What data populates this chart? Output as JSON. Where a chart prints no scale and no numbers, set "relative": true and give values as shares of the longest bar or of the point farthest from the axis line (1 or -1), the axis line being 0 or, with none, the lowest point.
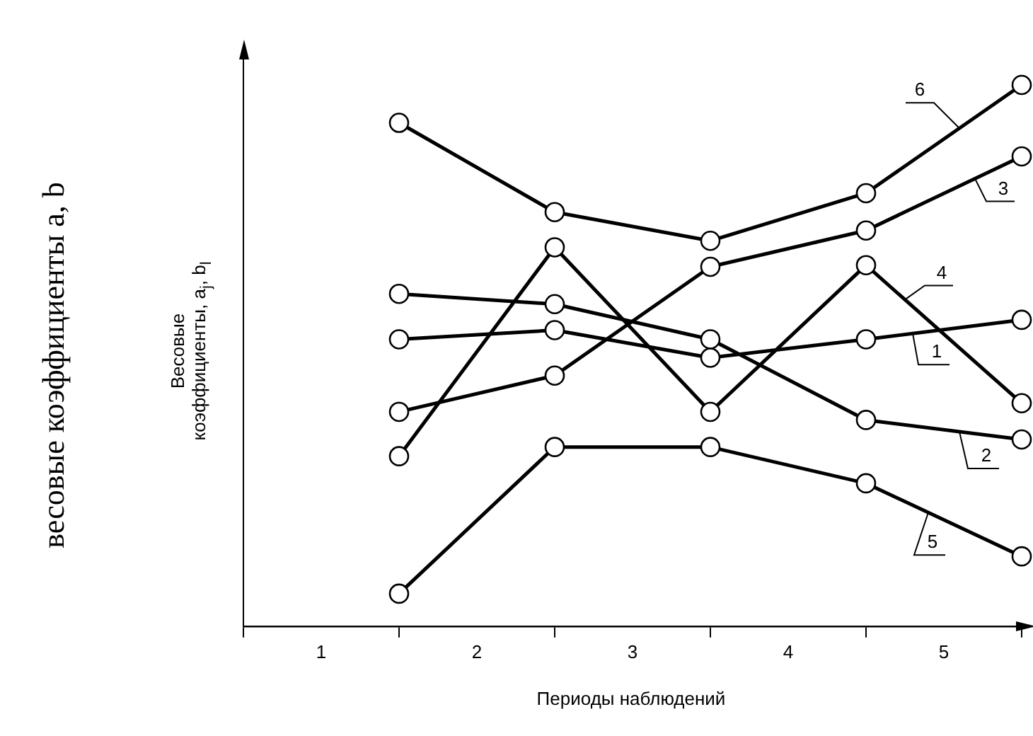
{
  "chart_data": {
    "type": "line",
    "relative": true,
    "xlabel": "Периоды наблюдений",
    "ylabel": "Весовые\nкоэффициенты, a$_{j}$, b$_{l}$",
    "annotations": [
      "весовые коэффициенты a, b"
    ],
    "x": [
      1,
      2,
      3,
      4,
      5
    ],
    "xlim": [
      0,
      5
    ],
    "xticks": [
      {
        "value": 0,
        "label": null
      },
      {
        "value": 0.5,
        "label": "1"
      },
      {
        "value": 1,
        "label": null
      },
      {
        "value": 1.5,
        "label": "2"
      },
      {
        "value": 2,
        "label": null
      },
      {
        "value": 2.5,
        "label": "3"
      },
      {
        "value": 3,
        "label": null
      },
      {
        "value": 3.5,
        "label": "4"
      },
      {
        "value": 4,
        "label": null
      },
      {
        "value": 4.5,
        "label": "5"
      },
      {
        "value": 5,
        "label": null
      }
    ],
    "grid": false,
    "legend": false,
    "marker": "circle",
    "line_style": "solid",
    "series": [
      {
        "name": "1",
        "color": "#000000",
        "values": [
          0.53,
          0.547,
          0.496,
          0.53,
          0.566
        ]
      },
      {
        "name": "2",
        "color": "#000000",
        "values": [
          0.614,
          0.595,
          0.53,
          0.381,
          0.345
        ]
      },
      {
        "name": "3",
        "color": "#000000",
        "values": [
          0.396,
          0.463,
          0.664,
          0.731,
          0.868
        ]
      },
      {
        "name": "4",
        "color": "#000000",
        "values": [
          0.314,
          0.7,
          0.396,
          0.667,
          0.412
        ]
      },
      {
        "name": "5",
        "color": "#000000",
        "values": [
          0.06,
          0.331,
          0.331,
          0.264,
          0.129
        ]
      },
      {
        "name": "6",
        "color": "#000000",
        "values": [
          0.93,
          0.765,
          0.712,
          0.8,
          1
        ]
      }
    ]
  }
}
